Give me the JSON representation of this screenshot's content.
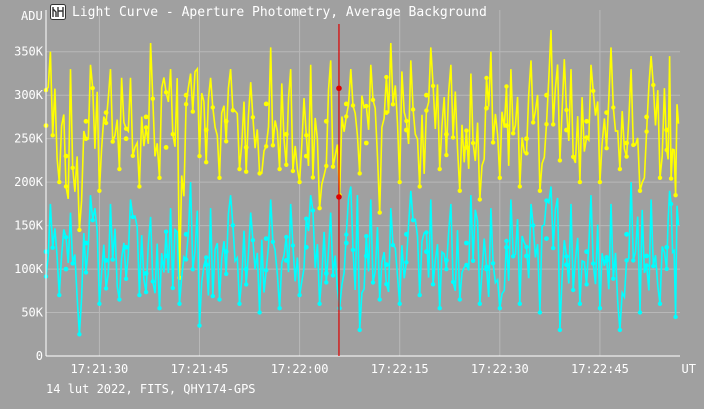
{
  "window": {
    "title": "Light Curve - Aperture Photometry, Average Background",
    "icon": "app-icon"
  },
  "footer": "14 lut 2022, FITS, QHY174-GPS",
  "colors": {
    "background": "#a0a0a0",
    "grid": "#b8b8b8",
    "axis": "#ffffff",
    "series_yellow": "#ffff00",
    "series_cyan": "#00ffff",
    "cursor": "#dd0000"
  },
  "chart_data": {
    "type": "line",
    "ylabel": "ADU",
    "xlabel": "UT",
    "ylim": [
      0,
      375000
    ],
    "xlim": [
      "17:21:22",
      "17:22:57"
    ],
    "y_ticks": [
      {
        "value": 0,
        "label": "0"
      },
      {
        "value": 50000,
        "label": "50K"
      },
      {
        "value": 100000,
        "label": "100K"
      },
      {
        "value": 150000,
        "label": "150K"
      },
      {
        "value": 200000,
        "label": "200K"
      },
      {
        "value": 250000,
        "label": "250K"
      },
      {
        "value": 300000,
        "label": "300K"
      },
      {
        "value": 350000,
        "label": "350K"
      }
    ],
    "x_ticks": [
      "17:21:30",
      "17:21:45",
      "17:22:00",
      "17:22:15",
      "17:22:30",
      "17:22:45"
    ],
    "cursor_time": "17:22:05.5",
    "grid": true,
    "series": [
      {
        "color": "#ffff00",
        "x": [
          "17:21:22",
          "17:21:25",
          "17:21:28",
          "17:21:31",
          "17:21:34",
          "17:21:37",
          "17:21:40",
          "17:21:43",
          "17:21:46",
          "17:21:49",
          "17:21:52",
          "17:21:55",
          "17:21:58",
          "17:22:01",
          "17:22:04",
          "17:22:07",
          "17:22:10",
          "17:22:13",
          "17:22:16",
          "17:22:19",
          "17:22:22",
          "17:22:25",
          "17:22:28",
          "17:22:31",
          "17:22:34",
          "17:22:37",
          "17:22:40",
          "17:22:43",
          "17:22:46",
          "17:22:49",
          "17:22:52",
          "17:22:55"
        ],
        "values": [
          265000,
          230000,
          270000,
          280000,
          250000,
          275000,
          240000,
          300000,
          260000,
          270000,
          240000,
          290000,
          255000,
          230000,
          270000,
          290000,
          245000,
          280000,
          260000,
          300000,
          255000,
          240000,
          285000,
          265000,
          250000,
          300000,
          260000,
          270000,
          280000,
          245000,
          275000,
          260000
        ],
        "min_values": [
          200000,
          145000,
          190000,
          215000,
          195000,
          205000,
          90000,
          230000,
          205000,
          215000,
          210000,
          215000,
          200000,
          170000,
          185000,
          210000,
          165000,
          200000,
          195000,
          215000,
          190000,
          180000,
          205000,
          195000,
          190000,
          225000,
          200000,
          200000,
          215000,
          190000,
          205000,
          185000
        ],
        "max_values": [
          350000,
          330000,
          335000,
          330000,
          320000,
          360000,
          330000,
          325000,
          320000,
          330000,
          315000,
          355000,
          330000,
          335000,
          340000,
          330000,
          335000,
          360000,
          340000,
          355000,
          335000,
          325000,
          350000,
          330000,
          340000,
          375000,
          330000,
          335000,
          355000,
          330000,
          345000,
          345000
        ]
      },
      {
        "color": "#00ffff",
        "x": [
          "17:21:22",
          "17:21:25",
          "17:21:28",
          "17:21:31",
          "17:21:34",
          "17:21:37",
          "17:21:40",
          "17:21:43",
          "17:21:46",
          "17:21:49",
          "17:21:52",
          "17:21:55",
          "17:21:58",
          "17:22:01",
          "17:22:04",
          "17:22:07",
          "17:22:10",
          "17:22:13",
          "17:22:16",
          "17:22:19",
          "17:22:22",
          "17:22:25",
          "17:22:28",
          "17:22:31",
          "17:22:34",
          "17:22:37",
          "17:22:40",
          "17:22:43",
          "17:22:46",
          "17:22:49",
          "17:22:52",
          "17:22:55"
        ],
        "values": [
          120000,
          100000,
          130000,
          110000,
          125000,
          95000,
          115000,
          140000,
          105000,
          120000,
          100000,
          135000,
          110000,
          125000,
          95000,
          130000,
          115000,
          105000,
          140000,
          120000,
          110000,
          130000,
          100000,
          125000,
          115000,
          135000,
          105000,
          120000,
          110000,
          140000,
          115000,
          125000
        ],
        "min_values": [
          70000,
          25000,
          60000,
          65000,
          70000,
          55000,
          60000,
          35000,
          65000,
          60000,
          50000,
          55000,
          70000,
          60000,
          55000,
          30000,
          65000,
          60000,
          70000,
          55000,
          65000,
          60000,
          55000,
          60000,
          50000,
          30000,
          60000,
          55000,
          30000,
          50000,
          60000,
          45000
        ],
        "max_values": [
          175000,
          165000,
          185000,
          175000,
          180000,
          160000,
          170000,
          200000,
          170000,
          185000,
          165000,
          180000,
          175000,
          185000,
          165000,
          195000,
          180000,
          170000,
          190000,
          180000,
          175000,
          185000,
          170000,
          180000,
          175000,
          195000,
          175000,
          185000,
          175000,
          200000,
          180000,
          190000
        ]
      }
    ]
  }
}
